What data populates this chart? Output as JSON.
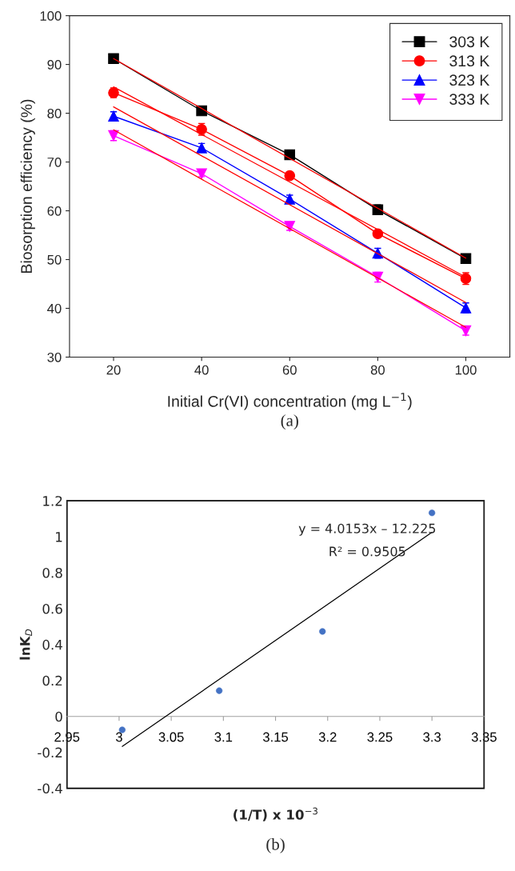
{
  "chart_data": [
    {
      "type": "line",
      "xlabel": "Initial Cr(VI) concentration (mg L$^{−1}$)",
      "ylabel": "Biosorption efficiency (%)",
      "x": [
        20,
        40,
        60,
        80,
        100
      ],
      "xlim": [
        10,
        110
      ],
      "xticks": [
        20,
        40,
        60,
        80,
        100
      ],
      "ylim": [
        30,
        100
      ],
      "yticks": [
        30,
        40,
        50,
        60,
        70,
        80,
        90,
        100
      ],
      "legend": "top right",
      "grid": false,
      "annotations": [
        "(a)"
      ],
      "series": [
        {
          "name": "303 K",
          "color": "#000000",
          "marker": "square",
          "values": [
            91.2,
            80.5,
            71.5,
            60.2,
            50.2
          ],
          "errors": [
            0.8,
            0.6,
            0.9,
            1.0,
            0.5
          ]
        },
        {
          "name": "313 K",
          "color": "#ff0000",
          "marker": "circle",
          "values": [
            84.2,
            76.7,
            67.2,
            55.3,
            46.1
          ],
          "errors": [
            1.0,
            1.2,
            0.6,
            0.6,
            1.2
          ]
        },
        {
          "name": "323 K",
          "color": "#0000ff",
          "marker": "triangle",
          "values": [
            79.4,
            72.9,
            62.4,
            51.3,
            40.1
          ],
          "errors": [
            0.9,
            0.9,
            0.8,
            1.0,
            1.0
          ]
        },
        {
          "name": "333 K",
          "color": "#ff00ff",
          "marker": "triangle_down",
          "values": [
            75.4,
            67.6,
            56.8,
            46.4,
            35.4
          ],
          "errors": [
            1.0,
            0.6,
            0.8,
            1.0,
            0.9
          ]
        },
        {
          "type": "line",
          "color": "#ff0000",
          "marker": "none",
          "x": [
            20,
            100
          ],
          "values": [
            91.2,
            50.3
          ]
        },
        {
          "type": "line",
          "color": "#ff0000",
          "marker": "none",
          "x": [
            20,
            100
          ],
          "values": [
            85.4,
            46.4
          ]
        },
        {
          "type": "line",
          "color": "#ff0000",
          "marker": "none",
          "x": [
            20,
            100
          ],
          "values": [
            81.3,
            41.2
          ]
        },
        {
          "type": "line",
          "color": "#ff0000",
          "marker": "none",
          "x": [
            20,
            100
          ],
          "values": [
            76.6,
            36.1
          ]
        }
      ]
    },
    {
      "type": "scatter",
      "xlabel": "(1/T) x 10$^{−3}$",
      "ylabel": "lnK$_{D}$",
      "xlim": [
        2.95,
        3.35
      ],
      "xticks": [
        2.95,
        3,
        3.05,
        3.1,
        3.15,
        3.2,
        3.25,
        3.3,
        3.35
      ],
      "ylim": [
        -0.4,
        1.2
      ],
      "yticks": [
        -0.4,
        -0.2,
        0,
        0.2,
        0.4,
        0.6,
        0.8,
        1,
        1.2
      ],
      "grid": false,
      "legend": false,
      "annotations": [
        "y = 4.0153x – 12.225",
        "R² = 0.9505",
        "(b)"
      ],
      "series": [
        {
          "color": "#4472c4",
          "marker": "circle",
          "x": [
            3.003,
            3.096,
            3.195,
            3.3
          ],
          "values": [
            -0.075,
            0.143,
            0.473,
            1.133
          ]
        },
        {
          "type": "line",
          "color": "#000000",
          "marker": "none",
          "x": [
            3.003,
            3.3
          ],
          "values": [
            -0.167,
            1.025
          ]
        }
      ]
    }
  ]
}
